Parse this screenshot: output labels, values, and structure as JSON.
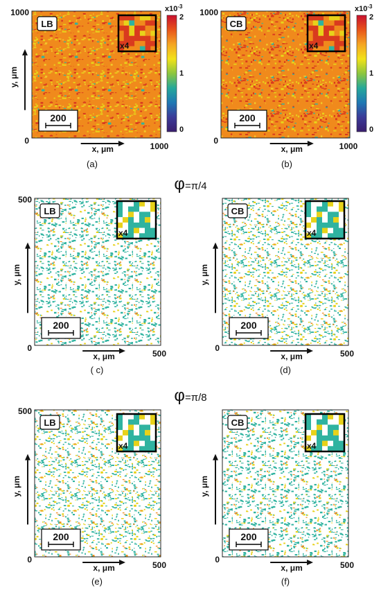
{
  "panels": [
    {
      "id": "a",
      "tag": "LB",
      "caption": "(a)",
      "y_tick_top": "1000",
      "x_tick_end": "1000",
      "origin": "0",
      "scale_bar": "200",
      "zoom": "x4",
      "palette": "hot",
      "show_axis_labels": true
    },
    {
      "id": "b",
      "tag": "CB",
      "caption": "(b)",
      "y_tick_top": "1000",
      "x_tick_end": "1000",
      "origin": "0",
      "scale_bar": "200",
      "zoom": "x4",
      "palette": "hot",
      "show_axis_labels": false
    },
    {
      "id": "c",
      "tag": "LB",
      "caption": "( c)",
      "y_tick_top": "500",
      "x_tick_end": "500",
      "origin": "0",
      "scale_bar": "200",
      "zoom": "x4",
      "palette": "sparse",
      "show_axis_labels": true
    },
    {
      "id": "d",
      "tag": "CB",
      "caption": "(d)",
      "y_tick_top": "",
      "x_tick_end": "500",
      "origin": "0",
      "scale_bar": "200",
      "zoom": "x4",
      "palette": "sparse",
      "show_axis_labels": true
    },
    {
      "id": "e",
      "tag": "LB",
      "caption": "(e)",
      "y_tick_top": "500",
      "x_tick_end": "500",
      "origin": "0",
      "scale_bar": "200",
      "zoom": "x4",
      "palette": "sparse",
      "show_axis_labels": true
    },
    {
      "id": "f",
      "tag": "CB",
      "caption": "(f)",
      "y_tick_top": "",
      "x_tick_end": "500",
      "origin": "0",
      "scale_bar": "200",
      "zoom": "x4",
      "palette": "sparse",
      "show_axis_labels": true
    }
  ],
  "axis_labels": {
    "x": "x, μm",
    "y": "y, μm"
  },
  "colorbar": {
    "exponent": "x10",
    "power": "-3",
    "ticks": [
      "2",
      "1",
      "0"
    ],
    "colors": [
      "#c8102e",
      "#e8541a",
      "#f5a623",
      "#f2e21a",
      "#8cc63f",
      "#25a89a",
      "#1f78b4",
      "#3b3b98",
      "#3a1e6e"
    ]
  },
  "section_titles": [
    {
      "phi": "φ",
      "value": "=π/4"
    },
    {
      "phi": "φ",
      "value": "=π/8"
    }
  ],
  "texture_colors": {
    "red": "#d93a1e",
    "orange": "#f08a1c",
    "yellow": "#e8d21a",
    "green": "#2fb3a0",
    "white": "#ffffff"
  }
}
